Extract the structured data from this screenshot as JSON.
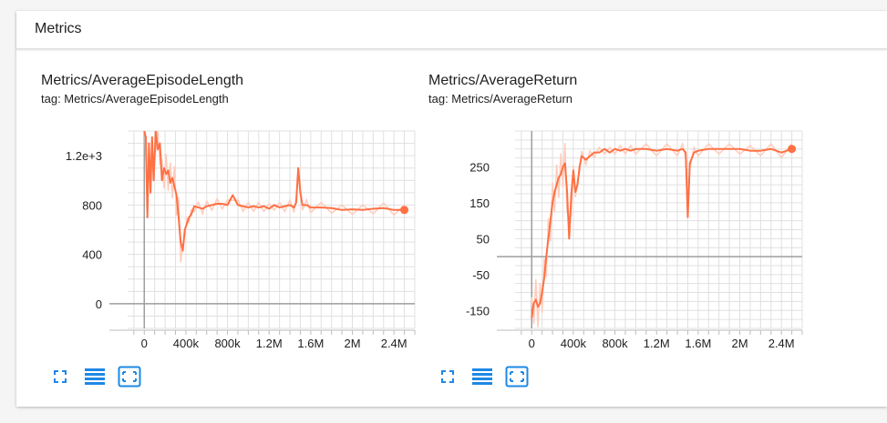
{
  "panel": {
    "title": "Metrics"
  },
  "cards": [
    {
      "title": "Metrics/AverageEpisodeLength",
      "tag": "tag: Metrics/AverageEpisodeLength",
      "tools": [
        "fullscreen-icon",
        "list-icon",
        "fit-domain-icon"
      ]
    },
    {
      "title": "Metrics/AverageReturn",
      "tag": "tag: Metrics/AverageReturn",
      "tools": [
        "fullscreen-icon",
        "list-icon",
        "fit-domain-icon"
      ]
    }
  ],
  "colors": {
    "series": "#ff7043",
    "raw": "#ffccbc",
    "grid": "#e0e0e0",
    "axis": "#9e9e9e",
    "accent": "#1e88e5"
  },
  "chart_data": [
    {
      "type": "line",
      "title": "Metrics/AverageEpisodeLength",
      "xlim": [
        -160000,
        2600000
      ],
      "ylim": [
        -200,
        1400
      ],
      "x_ticks": [
        0,
        400000,
        800000,
        1200000,
        1600000,
        2000000,
        2400000
      ],
      "x_tick_labels": [
        "0",
        "400k",
        "800k",
        "1.2M",
        "1.6M",
        "2M",
        "2.4M"
      ],
      "y_ticks": [
        0,
        400,
        800,
        1200
      ],
      "y_tick_labels": [
        "0",
        "400",
        "800",
        "1.2e+3"
      ],
      "series": [
        {
          "x": [
            0,
            15000,
            30000,
            45000,
            60000,
            75000,
            90000,
            110000,
            130000,
            150000,
            170000,
            190000,
            210000,
            230000,
            250000,
            270000,
            290000,
            310000,
            330000,
            350000,
            370000,
            390000,
            410000,
            430000,
            450000,
            480000,
            520000,
            560000,
            600000,
            650000,
            700000,
            750000,
            800000,
            850000,
            900000,
            950000,
            1000000,
            1050000,
            1100000,
            1150000,
            1200000,
            1250000,
            1300000,
            1350000,
            1400000,
            1440000,
            1460000,
            1480000,
            1500000,
            1520000,
            1560000,
            1600000,
            1700000,
            1800000,
            1900000,
            2000000,
            2100000,
            2200000,
            2300000,
            2400000,
            2500000
          ],
          "y": [
            1400,
            1350,
            700,
            1300,
            900,
            1350,
            1000,
            1400,
            1250,
            1300,
            1000,
            1100,
            1050,
            1080,
            980,
            1020,
            950,
            880,
            700,
            500,
            430,
            600,
            650,
            700,
            720,
            790,
            780,
            770,
            790,
            800,
            810,
            810,
            800,
            880,
            800,
            790,
            780,
            790,
            780,
            790,
            770,
            800,
            780,
            790,
            800,
            780,
            820,
            1100,
            900,
            800,
            800,
            780,
            780,
            775,
            760,
            765,
            760,
            770,
            775,
            760,
            760
          ]
        }
      ]
    },
    {
      "type": "line",
      "title": "Metrics/AverageReturn",
      "xlim": [
        -160000,
        2600000
      ],
      "ylim": [
        -200,
        350
      ],
      "x_ticks": [
        0,
        400000,
        800000,
        1200000,
        1600000,
        2000000,
        2400000
      ],
      "x_tick_labels": [
        "0",
        "400k",
        "800k",
        "1.2M",
        "1.6M",
        "2M",
        "2.4M"
      ],
      "y_ticks": [
        -150,
        -50,
        50,
        150,
        250
      ],
      "y_tick_labels": [
        "-150",
        "-50",
        "50",
        "150",
        "250"
      ],
      "series": [
        {
          "x": [
            0,
            20000,
            40000,
            60000,
            80000,
            100000,
            120000,
            140000,
            160000,
            180000,
            200000,
            220000,
            240000,
            260000,
            280000,
            300000,
            320000,
            340000,
            360000,
            380000,
            400000,
            420000,
            440000,
            460000,
            480000,
            520000,
            560000,
            600000,
            650000,
            700000,
            750000,
            800000,
            850000,
            900000,
            950000,
            1000000,
            1100000,
            1200000,
            1300000,
            1400000,
            1450000,
            1480000,
            1500000,
            1520000,
            1560000,
            1600000,
            1700000,
            1800000,
            1900000,
            2000000,
            2100000,
            2200000,
            2300000,
            2400000,
            2500000
          ],
          "y": [
            -170,
            -130,
            -120,
            -140,
            -130,
            -100,
            -60,
            0,
            50,
            100,
            150,
            180,
            200,
            220,
            230,
            250,
            260,
            180,
            50,
            170,
            240,
            180,
            200,
            250,
            280,
            270,
            280,
            290,
            290,
            300,
            290,
            300,
            295,
            300,
            295,
            300,
            300,
            295,
            300,
            295,
            300,
            290,
            110,
            260,
            290,
            295,
            300,
            300,
            300,
            300,
            295,
            295,
            300,
            290,
            300
          ]
        }
      ]
    }
  ]
}
